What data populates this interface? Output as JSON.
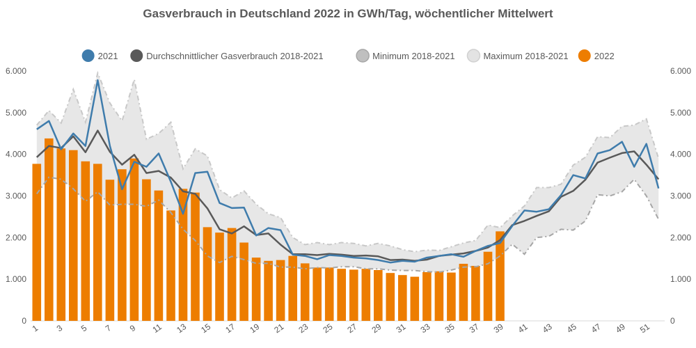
{
  "chart_data": {
    "type": "bar-line",
    "title": "Gasverbrauch in Deutschland 2022 in GWh/Tag, wöchentlicher Mittelwert",
    "xlabel": "",
    "ylabel": "",
    "ylim": [
      0,
      6000
    ],
    "yticks": [
      0,
      1000,
      2000,
      3000,
      4000,
      5000,
      6000
    ],
    "ytick_labels": [
      "0",
      "1.000",
      "2.000",
      "3.000",
      "4.000",
      "5.000",
      "6.000"
    ],
    "xtick_labels": [
      "1",
      "3",
      "5",
      "7",
      "9",
      "11",
      "13",
      "15",
      "17",
      "19",
      "21",
      "23",
      "25",
      "27",
      "29",
      "31",
      "33",
      "35",
      "37",
      "39",
      "41",
      "43",
      "45",
      "47",
      "49",
      "51"
    ],
    "weeks": [
      1,
      2,
      3,
      4,
      5,
      6,
      7,
      8,
      9,
      10,
      11,
      12,
      13,
      14,
      15,
      16,
      17,
      18,
      19,
      20,
      21,
      22,
      23,
      24,
      25,
      26,
      27,
      28,
      29,
      30,
      31,
      32,
      33,
      34,
      35,
      36,
      37,
      38,
      39,
      40,
      41,
      42,
      43,
      44,
      45,
      46,
      47,
      48,
      49,
      50,
      51,
      52
    ],
    "legend_position": "top-center",
    "legend": [
      {
        "label": "2021",
        "color": "#3f7cac"
      },
      {
        "label": "Durchschnittlicher Gasverbrauch 2018-2021",
        "color": "#595959"
      },
      {
        "label": "Minimum 2018-2021",
        "color": "#bfbfbf"
      },
      {
        "label": "Maximum 2018-2021",
        "color": "#e3e3e3"
      },
      {
        "label": "2022",
        "color": "#ed7d00"
      }
    ],
    "series": [
      {
        "name": "2022",
        "type": "bar",
        "color": "#ed7d00",
        "values": [
          3770,
          4380,
          4140,
          4100,
          3830,
          3770,
          3390,
          3640,
          3900,
          3400,
          3130,
          2650,
          3170,
          3080,
          2250,
          2120,
          2230,
          1880,
          1520,
          1440,
          1460,
          1560,
          1380,
          1280,
          1280,
          1250,
          1230,
          1250,
          1220,
          1150,
          1100,
          1060,
          1170,
          1190,
          1160,
          1370,
          1320,
          1660,
          2150
        ]
      },
      {
        "name": "2021",
        "type": "line",
        "color": "#3f7cac",
        "values": [
          4600,
          4800,
          4120,
          4500,
          4200,
          5780,
          4200,
          3160,
          3820,
          3700,
          4020,
          3340,
          2570,
          3550,
          3580,
          2830,
          2710,
          2720,
          2050,
          2230,
          2180,
          1590,
          1560,
          1480,
          1580,
          1560,
          1520,
          1500,
          1460,
          1400,
          1440,
          1420,
          1520,
          1560,
          1600,
          1540,
          1680,
          1800,
          1870,
          2280,
          2650,
          2620,
          2680,
          3020,
          3500,
          3420,
          4020,
          4100,
          4300,
          3700,
          4250,
          3180
        ]
      },
      {
        "name": "Durchschnittlicher Gasverbrauch 2018-2021",
        "type": "line",
        "color": "#595959",
        "values": [
          3930,
          4200,
          4150,
          4430,
          4050,
          4570,
          4060,
          3750,
          3990,
          3550,
          3600,
          3440,
          3110,
          3050,
          2700,
          2200,
          2100,
          2270,
          2060,
          2100,
          1830,
          1600,
          1600,
          1580,
          1610,
          1590,
          1560,
          1570,
          1550,
          1460,
          1470,
          1440,
          1470,
          1560,
          1590,
          1620,
          1680,
          1760,
          1940,
          2300,
          2400,
          2520,
          2630,
          2980,
          3120,
          3390,
          3800,
          3920,
          4030,
          4070,
          3750,
          3400
        ]
      },
      {
        "name": "Minimum 2018-2021",
        "type": "line",
        "color": "#bfbfbf",
        "values": [
          3050,
          3450,
          3400,
          3170,
          2870,
          3100,
          2780,
          2800,
          2800,
          2750,
          2900,
          2600,
          2200,
          1930,
          1560,
          1400,
          1550,
          1470,
          1380,
          1380,
          1290,
          1290,
          1250,
          1280,
          1270,
          1300,
          1300,
          1250,
          1250,
          1220,
          1210,
          1210,
          1180,
          1170,
          1220,
          1290,
          1300,
          1370,
          1560,
          1840,
          1600,
          2000,
          2030,
          2200,
          2180,
          2400,
          3030,
          3000,
          3100,
          3400,
          3000,
          2440
        ]
      },
      {
        "name": "Maximum 2018-2021",
        "type": "line",
        "color": "#e3e3e3",
        "values": [
          4700,
          5050,
          4750,
          5560,
          4770,
          5950,
          5230,
          4800,
          5800,
          4360,
          4500,
          4770,
          3650,
          4130,
          3960,
          3150,
          2950,
          3120,
          2800,
          2570,
          2480,
          2000,
          1830,
          1880,
          1830,
          1880,
          1860,
          1800,
          1860,
          1800,
          1710,
          1660,
          1700,
          1690,
          1780,
          1870,
          1930,
          2300,
          2240,
          2520,
          2760,
          3200,
          3200,
          3280,
          3740,
          3930,
          4420,
          4400,
          4670,
          4700,
          4850,
          3900
        ]
      }
    ]
  }
}
